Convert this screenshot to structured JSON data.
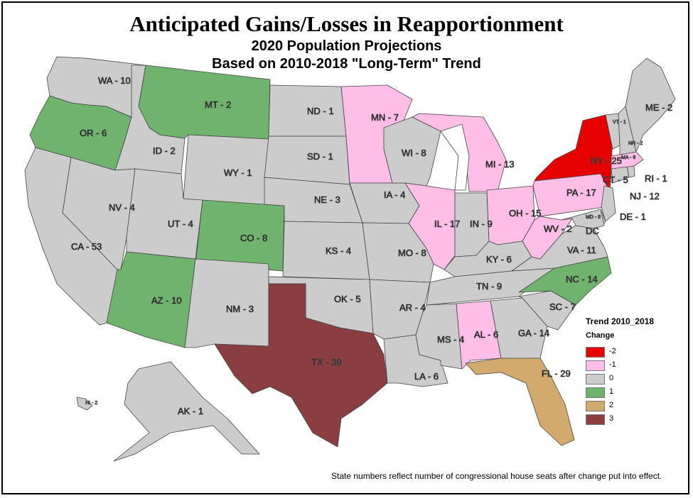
{
  "title": "Anticipated Gains/Losses in Reapportionment",
  "subtitle1": "2020 Population Projections",
  "subtitle2": "Based on 2010-2018 \"Long-Term\" Trend",
  "legend": {
    "title": "Trend 2010_2018",
    "subtitle": "Change",
    "items": [
      {
        "label": "-2",
        "color": "#e60000"
      },
      {
        "label": "-1",
        "color": "#ffbee8"
      },
      {
        "label": "0",
        "color": "#cccccc"
      },
      {
        "label": "1",
        "color": "#70b36f"
      },
      {
        "label": "2",
        "color": "#d2aa6d"
      },
      {
        "label": "3",
        "color": "#8b3e3f"
      }
    ]
  },
  "footnote": "State numbers reflect number of congressional house seats after change put into effect.",
  "states": [
    {
      "id": "WA",
      "label": "WA - 10",
      "change": 0
    },
    {
      "id": "OR",
      "label": "OR - 6",
      "change": 1
    },
    {
      "id": "CA",
      "label": "CA - 53",
      "change": 0
    },
    {
      "id": "ID",
      "label": "ID - 2",
      "change": 0
    },
    {
      "id": "NV",
      "label": "NV - 4",
      "change": 0
    },
    {
      "id": "MT",
      "label": "MT - 2",
      "change": 1
    },
    {
      "id": "WY",
      "label": "WY - 1",
      "change": 0
    },
    {
      "id": "UT",
      "label": "UT - 4",
      "change": 0
    },
    {
      "id": "CO",
      "label": "CO - 8",
      "change": 1
    },
    {
      "id": "AZ",
      "label": "AZ - 10",
      "change": 1
    },
    {
      "id": "NM",
      "label": "NM - 3",
      "change": 0
    },
    {
      "id": "ND",
      "label": "ND - 1",
      "change": 0
    },
    {
      "id": "SD",
      "label": "SD - 1",
      "change": 0
    },
    {
      "id": "NE",
      "label": "NE - 3",
      "change": 0
    },
    {
      "id": "KS",
      "label": "KS - 4",
      "change": 0
    },
    {
      "id": "OK",
      "label": "OK - 5",
      "change": 0
    },
    {
      "id": "TX",
      "label": "TX - 39",
      "change": 3
    },
    {
      "id": "MN",
      "label": "MN - 7",
      "change": -1
    },
    {
      "id": "IA",
      "label": "IA - 4",
      "change": 0
    },
    {
      "id": "MO",
      "label": "MO - 8",
      "change": 0
    },
    {
      "id": "AR",
      "label": "AR - 4",
      "change": 0
    },
    {
      "id": "LA",
      "label": "LA - 6",
      "change": 0
    },
    {
      "id": "WI",
      "label": "WI - 8",
      "change": 0
    },
    {
      "id": "IL",
      "label": "IL - 17",
      "change": -1
    },
    {
      "id": "MI",
      "label": "MI - 13",
      "change": -1
    },
    {
      "id": "IN",
      "label": "IN - 9",
      "change": 0
    },
    {
      "id": "OH",
      "label": "OH - 15",
      "change": -1
    },
    {
      "id": "KY",
      "label": "KY - 6",
      "change": 0
    },
    {
      "id": "TN",
      "label": "TN - 9",
      "change": 0
    },
    {
      "id": "MS",
      "label": "MS - 4",
      "change": 0
    },
    {
      "id": "AL",
      "label": "AL - 6",
      "change": -1
    },
    {
      "id": "GA",
      "label": "GA - 14",
      "change": 0
    },
    {
      "id": "FL",
      "label": "FL - 29",
      "change": 2
    },
    {
      "id": "SC",
      "label": "SC - 7",
      "change": 0
    },
    {
      "id": "NC",
      "label": "NC - 14",
      "change": 1
    },
    {
      "id": "VA",
      "label": "VA - 11",
      "change": 0
    },
    {
      "id": "WV",
      "label": "WV - 2",
      "change": -1
    },
    {
      "id": "PA",
      "label": "PA - 17",
      "change": -1
    },
    {
      "id": "NY",
      "label": "NY - 25",
      "change": -2
    },
    {
      "id": "NJ",
      "label": "NJ - 12",
      "change": 0
    },
    {
      "id": "DE",
      "label": "DE - 1",
      "change": 0
    },
    {
      "id": "MD",
      "label": "MD - 8",
      "change": 0
    },
    {
      "id": "DC",
      "label": "DC",
      "change": 0
    },
    {
      "id": "CT",
      "label": "CT - 5",
      "change": 0
    },
    {
      "id": "RI",
      "label": "RI - 1",
      "change": 0
    },
    {
      "id": "MA",
      "label": "MA - 9",
      "change": -1
    },
    {
      "id": "VT",
      "label": "VT - 1",
      "change": 0
    },
    {
      "id": "NH",
      "label": "NH - 2",
      "change": 0
    },
    {
      "id": "ME",
      "label": "ME - 2",
      "change": 0
    },
    {
      "id": "AK",
      "label": "AK - 1",
      "change": 0
    },
    {
      "id": "HI",
      "label": "HI - 2",
      "change": 0
    }
  ]
}
